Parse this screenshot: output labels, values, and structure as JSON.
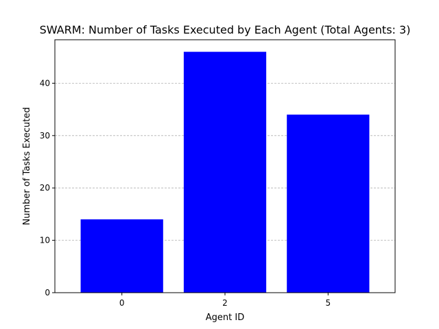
{
  "chart_data": {
    "type": "bar",
    "title": "SWARM: Number of Tasks Executed by Each Agent (Total Agents: 3)",
    "xlabel": "Agent ID",
    "ylabel": "Number of Tasks Executed",
    "categories": [
      "0",
      "2",
      "5"
    ],
    "values": [
      14,
      46,
      34
    ],
    "ylim": [
      0,
      48.3
    ],
    "yticks": [
      0,
      10,
      20,
      30,
      40
    ],
    "grid": "y-dashed",
    "bar_color": "#0000ff"
  }
}
